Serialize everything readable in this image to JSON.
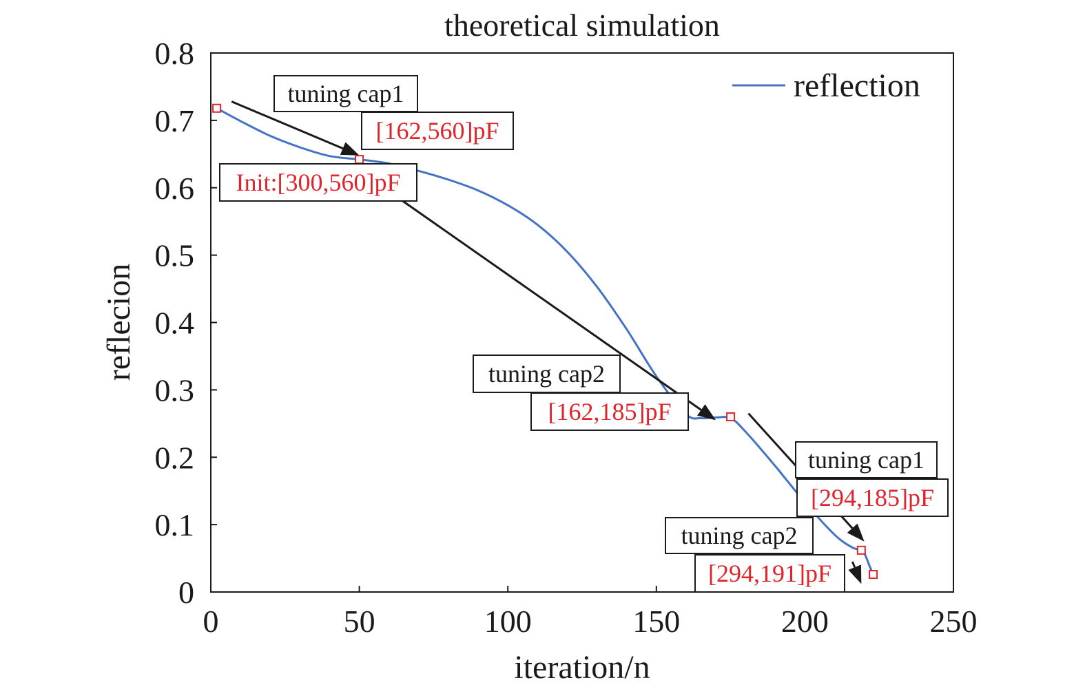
{
  "chart_data": {
    "type": "line",
    "title": "theoretical simulation",
    "xlabel": "iteration/n",
    "ylabel": "reflecion",
    "xlim": [
      0,
      250
    ],
    "ylim": [
      0,
      0.8
    ],
    "x_ticks": [
      {
        "value": 0,
        "label": "0"
      },
      {
        "value": 50,
        "label": "50"
      },
      {
        "value": 100,
        "label": "100"
      },
      {
        "value": 150,
        "label": "150"
      },
      {
        "value": 200,
        "label": "200"
      },
      {
        "value": 250,
        "label": "250"
      }
    ],
    "y_ticks": [
      {
        "value": 0,
        "label": "0"
      },
      {
        "value": 0.1,
        "label": "0.1"
      },
      {
        "value": 0.2,
        "label": "0.2"
      },
      {
        "value": 0.3,
        "label": "0.3"
      },
      {
        "value": 0.4,
        "label": "0.4"
      },
      {
        "value": 0.5,
        "label": "0.5"
      },
      {
        "value": 0.6,
        "label": "0.6"
      },
      {
        "value": 0.7,
        "label": "0.7"
      },
      {
        "value": 0.8,
        "label": "0.8"
      }
    ],
    "grid": false,
    "legend": "top-right",
    "series": [
      {
        "name": "reflection",
        "color": "#4472c4",
        "x": [
          2,
          10,
          20,
          30,
          40,
          50,
          60,
          70,
          80,
          90,
          100,
          110,
          120,
          130,
          140,
          150,
          160,
          165,
          170,
          175,
          180,
          190,
          200,
          210,
          216,
          219,
          220,
          222,
          223
        ],
        "y": [
          0.718,
          0.699,
          0.677,
          0.66,
          0.647,
          0.642,
          0.636,
          0.625,
          0.612,
          0.596,
          0.574,
          0.545,
          0.505,
          0.453,
          0.39,
          0.32,
          0.264,
          0.258,
          0.259,
          0.258,
          0.238,
          0.187,
          0.133,
          0.085,
          0.066,
          0.063,
          0.058,
          0.036,
          0.026
        ]
      }
    ],
    "markers": [
      {
        "x": 2,
        "y": 0.718
      },
      {
        "x": 50,
        "y": 0.642
      },
      {
        "x": 175,
        "y": 0.26
      },
      {
        "x": 219,
        "y": 0.062
      },
      {
        "x": 223,
        "y": 0.026
      }
    ],
    "annotations": [
      {
        "text": "tuning cap1",
        "color": "#1a1a1a"
      },
      {
        "text": "[162,560]pF",
        "color": "#e0242b"
      },
      {
        "text": "Init:[300,560]pF",
        "color": "#e0242b"
      },
      {
        "text": "tuning cap2",
        "color": "#1a1a1a"
      },
      {
        "text": "[162,185]pF",
        "color": "#e0242b"
      },
      {
        "text": "tuning cap1",
        "color": "#1a1a1a"
      },
      {
        "text": "[294,185]pF",
        "color": "#e0242b"
      },
      {
        "text": "tuning cap2",
        "color": "#1a1a1a"
      },
      {
        "text": "[294,191]pF",
        "color": "#e0242b"
      }
    ],
    "arrows": [
      {
        "from": [
          7,
          0.728
        ],
        "to": [
          50,
          0.648
        ]
      },
      {
        "from": [
          55,
          0.61
        ],
        "to": [
          170,
          0.255
        ]
      },
      {
        "from": [
          181,
          0.265
        ],
        "to": [
          220,
          0.075
        ]
      },
      {
        "from": [
          216,
          0.045
        ],
        "to": [
          219,
          0.012
        ]
      }
    ]
  }
}
